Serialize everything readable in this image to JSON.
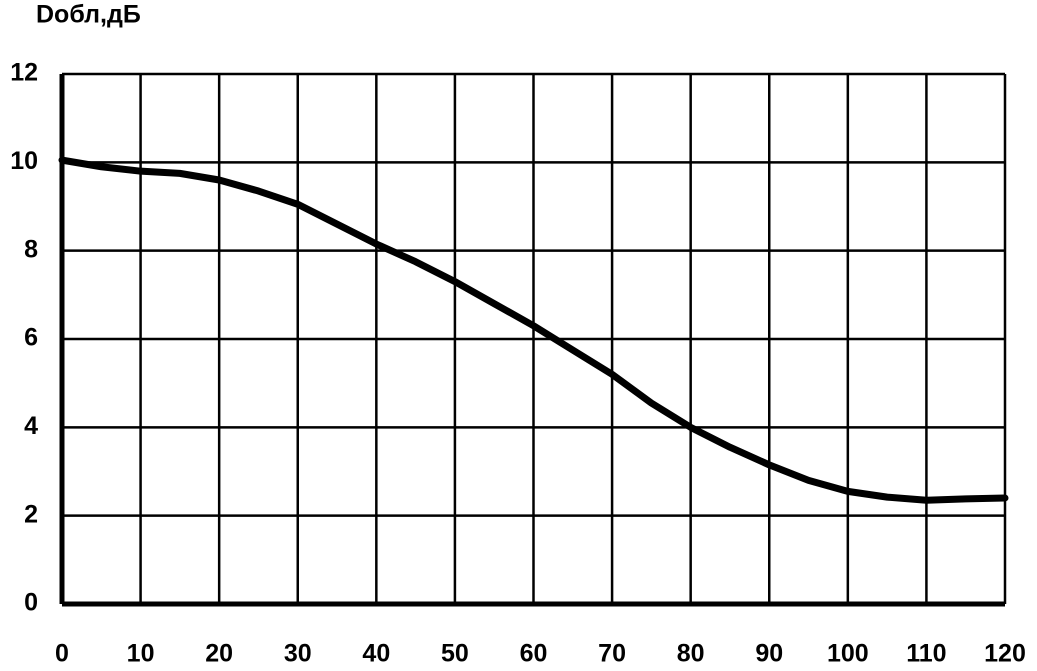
{
  "chart_data": {
    "type": "line",
    "y_label": "Dобл,дБ",
    "x": [
      0,
      5,
      10,
      15,
      20,
      25,
      30,
      35,
      40,
      45,
      50,
      55,
      60,
      65,
      70,
      75,
      80,
      85,
      90,
      95,
      100,
      105,
      110,
      115,
      120
    ],
    "series": [
      {
        "color": "#000000",
        "values": [
          10.05,
          9.9,
          9.8,
          9.75,
          9.6,
          9.35,
          9.05,
          8.6,
          8.15,
          7.75,
          7.3,
          6.8,
          6.3,
          5.75,
          5.2,
          4.55,
          4.0,
          3.55,
          3.15,
          2.8,
          2.55,
          2.42,
          2.35,
          2.38,
          2.4
        ]
      }
    ],
    "xlim": [
      0,
      120
    ],
    "xticks": [
      0,
      10,
      20,
      30,
      40,
      50,
      60,
      70,
      80,
      90,
      100,
      110,
      120
    ],
    "ylim": [
      0,
      12
    ],
    "yticks": [
      0,
      2,
      4,
      6,
      8,
      10,
      12
    ],
    "grid": true
  }
}
